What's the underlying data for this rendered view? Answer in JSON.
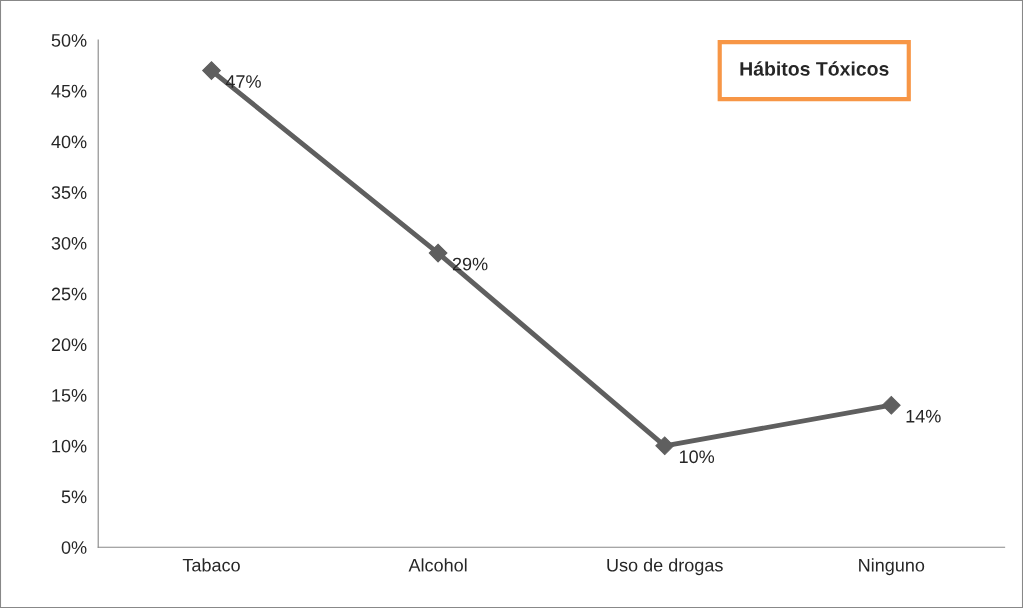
{
  "chart_data": {
    "type": "line",
    "title": "Hábitos Tóxicos",
    "categories": [
      "Tabaco",
      "Alcohol",
      "Uso de drogas",
      "Ninguno"
    ],
    "series": [
      {
        "color": "#5f5f5f",
        "values": [
          47,
          29,
          10,
          14
        ]
      }
    ],
    "value_labels": [
      "47%",
      "29%",
      "10%",
      "14%"
    ],
    "ylim": [
      0,
      50
    ],
    "yticks": [
      {
        "value": 0,
        "label": "0%"
      },
      {
        "value": 5,
        "label": "5%"
      },
      {
        "value": 10,
        "label": "10%"
      },
      {
        "value": 15,
        "label": "15%"
      },
      {
        "value": 20,
        "label": "20%"
      },
      {
        "value": 25,
        "label": "25%"
      },
      {
        "value": 30,
        "label": "30%"
      },
      {
        "value": 35,
        "label": "35%"
      },
      {
        "value": 40,
        "label": "40%"
      },
      {
        "value": 45,
        "label": "45%"
      },
      {
        "value": 50,
        "label": "50%"
      }
    ],
    "marker": "diamond",
    "line_style": "solid",
    "grid": false,
    "legend": false
  }
}
